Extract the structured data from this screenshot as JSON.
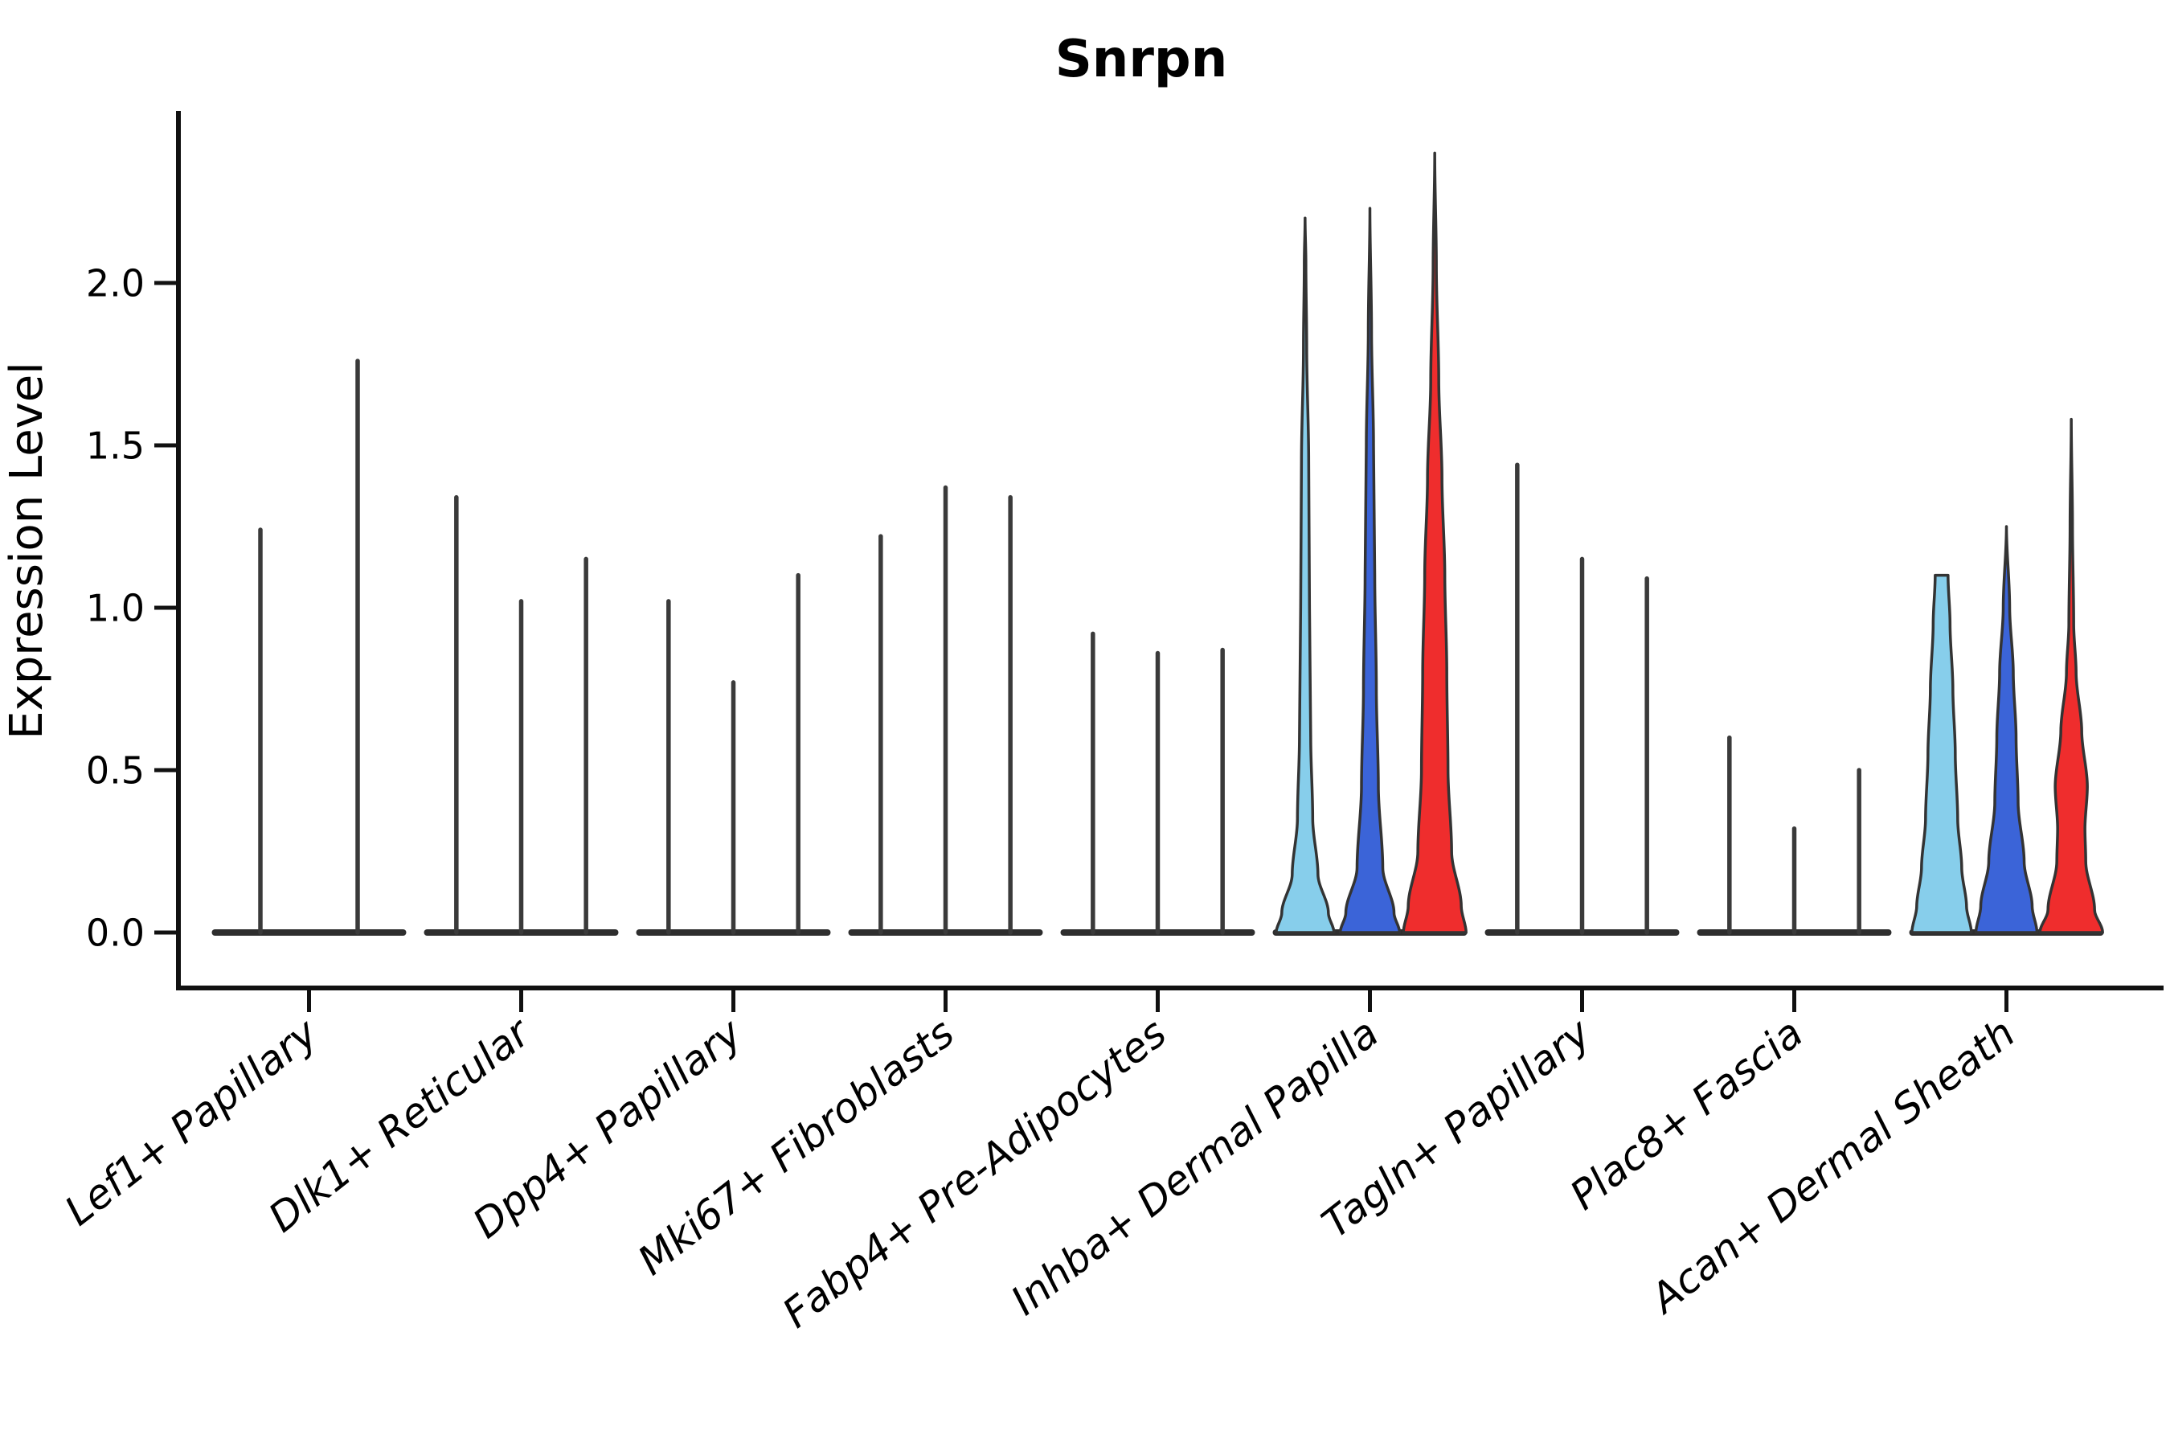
{
  "title": "Snrpn",
  "chart_data": {
    "type": "violin",
    "title": "Snrpn",
    "xlabel": "",
    "ylabel": "Expression Level",
    "ylim": [
      -0.17,
      2.53
    ],
    "grid": false,
    "legend": "none",
    "yticks": [
      {
        "value": 0.0,
        "label": "0.0"
      },
      {
        "value": 0.5,
        "label": "0.5"
      },
      {
        "value": 1.0,
        "label": "1.0"
      },
      {
        "value": 1.5,
        "label": "1.5"
      },
      {
        "value": 2.0,
        "label": "2.0"
      }
    ],
    "palette": {
      "skyblue": "#87CEEB",
      "royalblue": "#3B64D8",
      "red": "#EF2D2D",
      "spike": "#3A3A3A",
      "edge": "#333333",
      "axis": "#111111"
    },
    "groups": [
      {
        "label": "Lef1+ Papillary",
        "violins": [
          {
            "type": "spike",
            "max": 1.24
          },
          {
            "type": "spike",
            "max": 1.76
          }
        ]
      },
      {
        "label": "Dlk1+ Reticular",
        "violins": [
          {
            "type": "spike",
            "max": 1.34
          },
          {
            "type": "spike",
            "max": 1.02
          },
          {
            "type": "spike",
            "max": 1.15
          }
        ]
      },
      {
        "label": "Dpp4+ Papillary",
        "violins": [
          {
            "type": "spike",
            "max": 1.02
          },
          {
            "type": "spike",
            "max": 0.77
          },
          {
            "type": "spike",
            "max": 1.1
          }
        ]
      },
      {
        "label": "Mki67+ Fibroblasts",
        "violins": [
          {
            "type": "spike",
            "max": 1.22
          },
          {
            "type": "spike",
            "max": 1.37
          },
          {
            "type": "spike",
            "max": 1.34
          }
        ]
      },
      {
        "label": "Fabp4+ Pre-Adipocytes",
        "violins": [
          {
            "type": "spike",
            "max": 0.92
          },
          {
            "type": "spike",
            "max": 0.86
          },
          {
            "type": "spike",
            "max": 0.87
          }
        ]
      },
      {
        "label": "Inhba+ Dermal Papilla",
        "violins": [
          {
            "type": "shape",
            "hue": "skyblue",
            "max": 2.2,
            "flat_top": false,
            "profile": [
              [
                0,
                72
              ],
              [
                0.06,
                58
              ],
              [
                0.18,
                32
              ],
              [
                0.35,
                19
              ],
              [
                0.6,
                14
              ],
              [
                1.0,
                11
              ],
              [
                1.45,
                9
              ],
              [
                1.8,
                4
              ],
              [
                2.06,
                2
              ],
              [
                2.2,
                0
              ]
            ]
          },
          {
            "type": "shape",
            "hue": "royalblue",
            "max": 2.23,
            "flat_top": false,
            "profile": [
              [
                0,
                74
              ],
              [
                0.06,
                60
              ],
              [
                0.2,
                32
              ],
              [
                0.45,
                21
              ],
              [
                0.75,
                16
              ],
              [
                1.1,
                12
              ],
              [
                1.5,
                9
              ],
              [
                1.85,
                4
              ],
              [
                2.23,
                0
              ]
            ]
          },
          {
            "type": "shape",
            "hue": "red",
            "max": 2.4,
            "flat_top": false,
            "profile": [
              [
                0,
                78
              ],
              [
                0.08,
                66
              ],
              [
                0.25,
                42
              ],
              [
                0.5,
                33
              ],
              [
                0.8,
                30
              ],
              [
                1.1,
                25
              ],
              [
                1.4,
                18
              ],
              [
                1.7,
                10
              ],
              [
                2.05,
                4
              ],
              [
                2.4,
                0
              ]
            ]
          }
        ]
      },
      {
        "label": "Tagln+ Papillary",
        "violins": [
          {
            "type": "spike",
            "max": 1.44
          },
          {
            "type": "spike",
            "max": 1.15
          },
          {
            "type": "spike",
            "max": 1.09
          }
        ]
      },
      {
        "label": "Plac8+ Fascia",
        "violins": [
          {
            "type": "spike",
            "max": 0.6
          },
          {
            "type": "spike",
            "max": 0.32
          },
          {
            "type": "spike",
            "max": 0.5
          }
        ]
      },
      {
        "label": "Acan+ Dermal Sheath",
        "violins": [
          {
            "type": "shape",
            "hue": "skyblue",
            "max": 1.1,
            "flat_top": true,
            "profile": [
              [
                0,
                74
              ],
              [
                0.08,
                62
              ],
              [
                0.2,
                50
              ],
              [
                0.35,
                40
              ],
              [
                0.55,
                34
              ],
              [
                0.75,
                28
              ],
              [
                0.95,
                21
              ],
              [
                1.1,
                16
              ]
            ]
          },
          {
            "type": "shape",
            "hue": "royalblue",
            "max": 1.25,
            "flat_top": false,
            "profile": [
              [
                0,
                76
              ],
              [
                0.08,
                64
              ],
              [
                0.22,
                44
              ],
              [
                0.4,
                29
              ],
              [
                0.6,
                24
              ],
              [
                0.8,
                17
              ],
              [
                1.0,
                8
              ],
              [
                1.25,
                0
              ]
            ]
          },
          {
            "type": "shape",
            "hue": "red",
            "max": 1.58,
            "flat_top": false,
            "profile": [
              [
                0,
                78
              ],
              [
                0.07,
                58
              ],
              [
                0.22,
                36
              ],
              [
                0.32,
                34
              ],
              [
                0.45,
                40
              ],
              [
                0.62,
                26
              ],
              [
                0.8,
                12
              ],
              [
                0.95,
                6
              ],
              [
                1.25,
                3
              ],
              [
                1.58,
                0
              ]
            ]
          }
        ]
      }
    ]
  }
}
